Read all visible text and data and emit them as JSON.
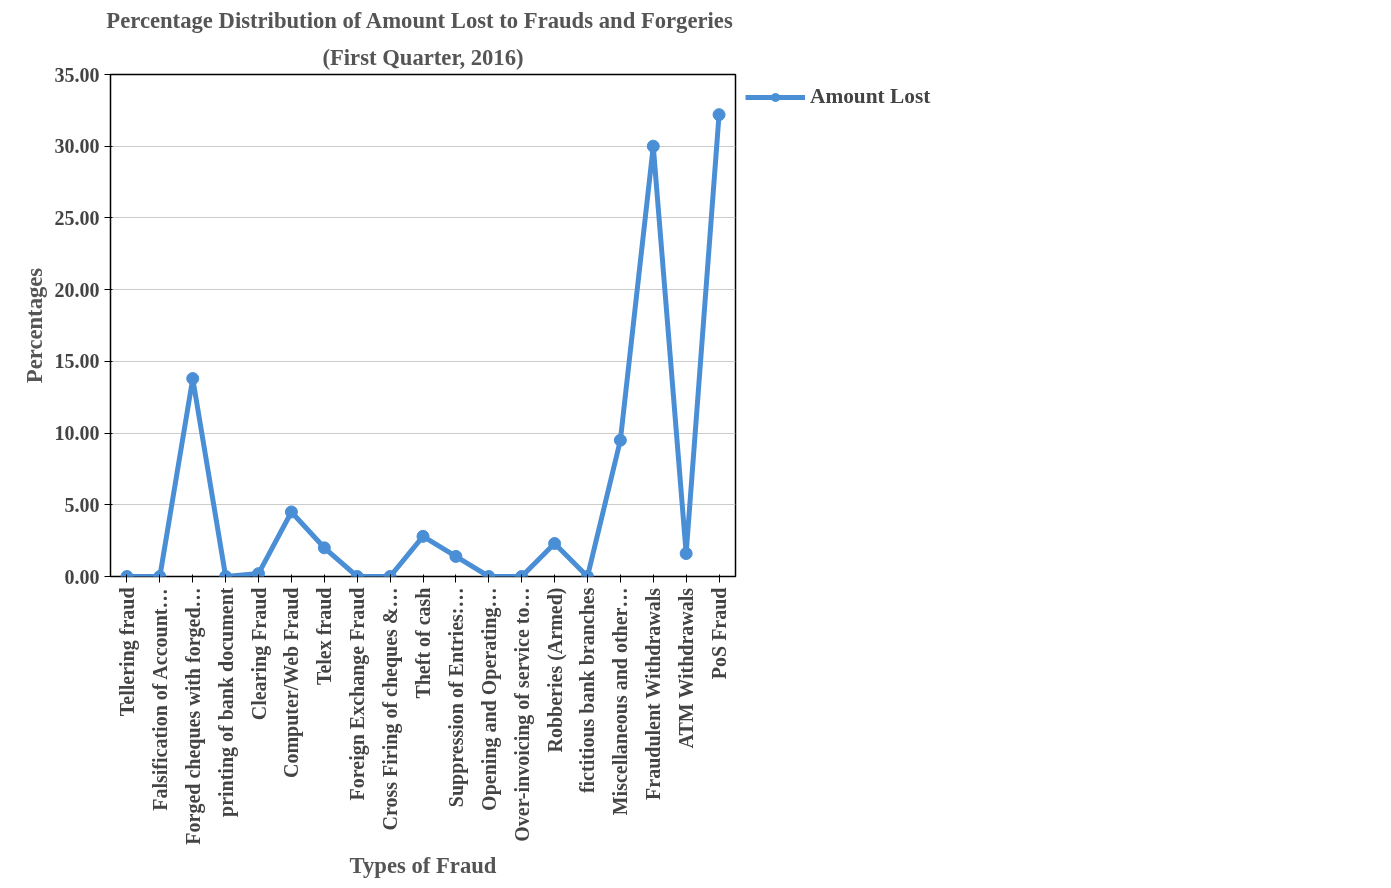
{
  "chart_data": {
    "type": "line",
    "title": "Percentage Distribution  of Amount Lost to Frauds and Forgeries",
    "subtitle": "(First Quarter, 2016)",
    "xlabel": "Types of Fraud",
    "ylabel": "Percentages",
    "categories": [
      "Tellering fraud",
      "Falsification of Account…",
      "Forged cheques with forged…",
      "printing of bank document",
      "Clearing Fraud",
      "Computer/Web Fraud",
      "Telex fraud",
      "Foreign Exchange Fraud",
      "Cross Firing of cheques &…",
      "Theft of cash",
      "Suppression of Entries:…",
      "Opening and Operating…",
      "Over-invoicing of service to…",
      "Robberies (Armed)",
      "fictitious bank branches",
      "Miscellaneous and other…",
      "Fraudulent Withdrawals",
      "ATM Withdrawals",
      "PoS Fraud"
    ],
    "series": [
      {
        "name": "Amount Lost",
        "color": "#4a8fd6",
        "values": [
          0,
          0,
          13.8,
          0,
          0.2,
          4.5,
          2.0,
          0,
          0,
          2.8,
          1.4,
          0,
          0,
          2.3,
          0,
          9.5,
          30.0,
          1.6,
          32.2
        ]
      }
    ],
    "ylim": [
      0,
      35
    ],
    "yticks": [
      {
        "value": 0,
        "label": "0.00"
      },
      {
        "value": 5,
        "label": "5.00"
      },
      {
        "value": 10,
        "label": "10.00"
      },
      {
        "value": 15,
        "label": "15.00"
      },
      {
        "value": 20,
        "label": "20.00"
      },
      {
        "value": 25,
        "label": "25.00"
      },
      {
        "value": 30,
        "label": "30.00"
      },
      {
        "value": 35,
        "label": "35.00"
      }
    ],
    "grid": "y",
    "legend": "right",
    "marker": "circle",
    "line_style": "solid"
  }
}
